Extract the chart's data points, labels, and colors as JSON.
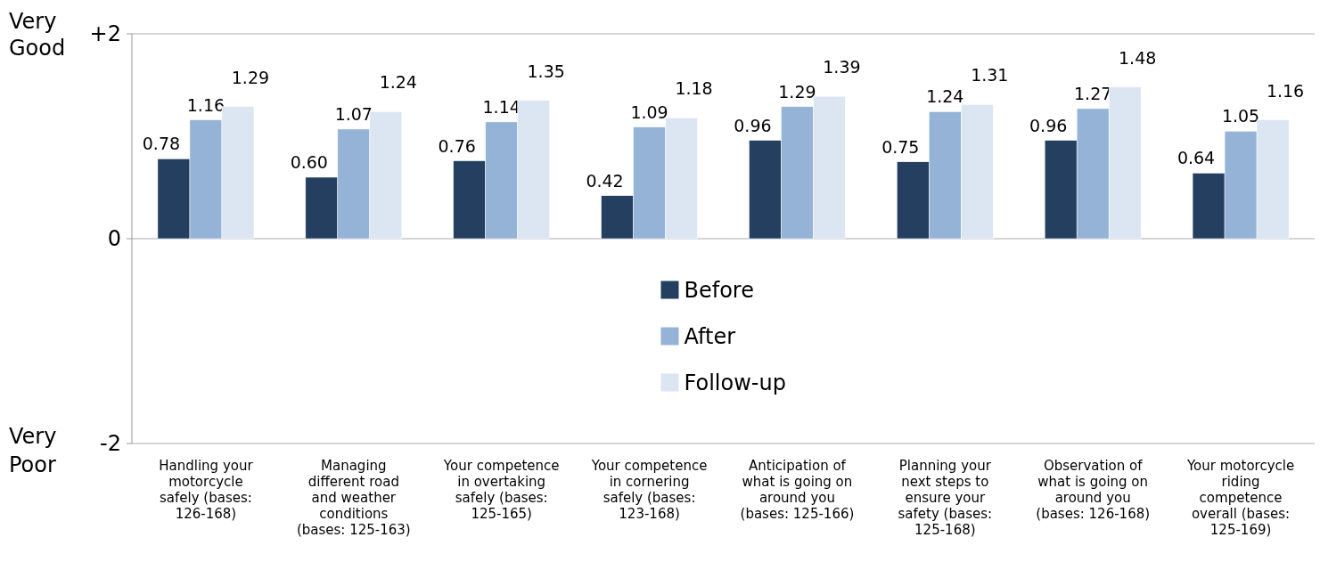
{
  "chart_data": {
    "type": "bar",
    "categories": [
      "Handling your motorcycle safely (bases: 126-168)",
      "Managing different road and weather conditions (bases: 125-163)",
      "Your competence in overtaking safely (bases: 125-165)",
      "Your competence in cornering safely (bases: 123-168)",
      "Anticipation of what is going on around you (bases: 125-166)",
      "Planning your next steps to ensure your safety (bases: 125-168)",
      "Observation of what is going on around you (bases: 126-168)",
      "Your motorcycle riding competence overall (bases: 125-169)"
    ],
    "series": [
      {
        "name": "Before",
        "color": "#243f60",
        "values": [
          0.78,
          0.6,
          0.76,
          0.42,
          0.96,
          0.75,
          0.96,
          0.64
        ],
        "value_labels": [
          "0.78",
          "0.60",
          "0.76",
          "0.42",
          "0.96",
          "0.75",
          "0.96",
          "0.64"
        ]
      },
      {
        "name": "After",
        "color": "#95b3d7",
        "values": [
          1.16,
          1.07,
          1.14,
          1.09,
          1.29,
          1.24,
          1.27,
          1.05
        ],
        "value_labels": [
          "1.16",
          "1.07",
          "1.14",
          "1.09",
          "1.29",
          "1.24",
          "1.27",
          "1.05"
        ]
      },
      {
        "name": "Follow-up",
        "color": "#dce6f2",
        "values": [
          1.29,
          1.24,
          1.35,
          1.18,
          1.39,
          1.31,
          1.48,
          1.16
        ],
        "value_labels": [
          "1.29",
          "1.24",
          "1.35",
          "1.18",
          "1.39",
          "1.31",
          "1.48",
          "1.16"
        ]
      }
    ],
    "ylim": [
      -2,
      2
    ],
    "yticks": [
      -2,
      0,
      {
        "value": 2,
        "label": "+2"
      }
    ],
    "annotations": [
      "Very Good",
      "Very Poor"
    ],
    "grid": "y",
    "legend": "center"
  }
}
